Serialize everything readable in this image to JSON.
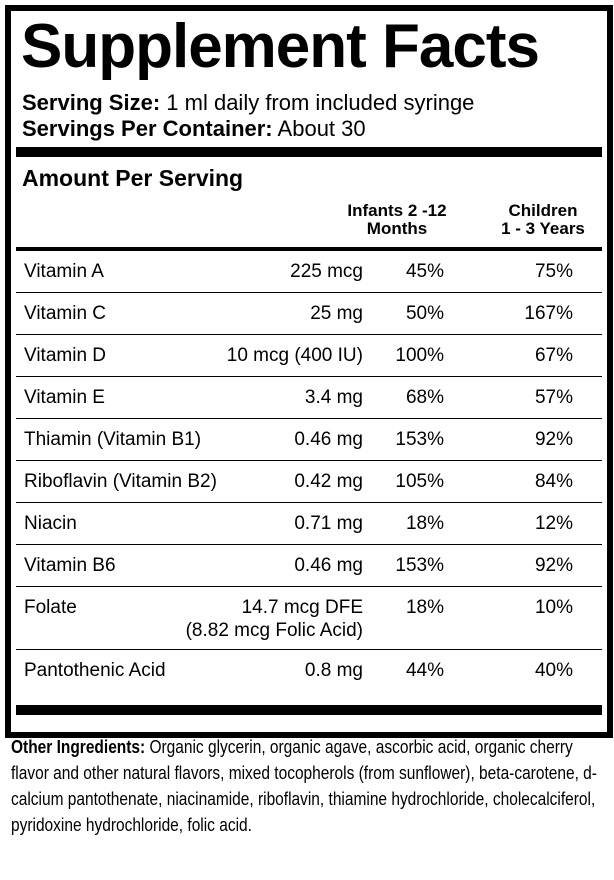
{
  "title": "Supplement Facts",
  "serving": {
    "size_label": "Serving Size:",
    "size_value": "1 ml daily from included syringe",
    "per_container_label": "Servings Per Container:",
    "per_container_value": "About 30"
  },
  "table": {
    "amount_per_serving": "Amount Per Serving",
    "col_infants_line1": "Infants 2 -12",
    "col_infants_line2": "Months",
    "col_children_line1": "Children",
    "col_children_line2": "1 - 3 Years",
    "rows": [
      {
        "nutrient": "Vitamin A",
        "amount": "225 mcg",
        "amount2": "",
        "infants": "45%",
        "children": "75%"
      },
      {
        "nutrient": "Vitamin C",
        "amount": "25 mg",
        "amount2": "",
        "infants": "50%",
        "children": "167%"
      },
      {
        "nutrient": "Vitamin D",
        "amount": "10 mcg (400 IU)",
        "amount2": "",
        "infants": "100%",
        "children": "67%"
      },
      {
        "nutrient": "Vitamin E",
        "amount": "3.4 mg",
        "amount2": "",
        "infants": "68%",
        "children": "57%"
      },
      {
        "nutrient": "Thiamin (Vitamin B1)",
        "amount": "0.46 mg",
        "amount2": "",
        "infants": "153%",
        "children": "92%"
      },
      {
        "nutrient": "Riboflavin (Vitamin B2)",
        "amount": "0.42 mg",
        "amount2": "",
        "infants": "105%",
        "children": "84%"
      },
      {
        "nutrient": "Niacin",
        "amount": "0.71 mg",
        "amount2": "",
        "infants": "18%",
        "children": "12%"
      },
      {
        "nutrient": "Vitamin B6",
        "amount": "0.46 mg",
        "amount2": "",
        "infants": "153%",
        "children": "92%"
      },
      {
        "nutrient": "Folate",
        "amount": "14.7 mcg DFE",
        "amount2": "(8.82 mcg Folic Acid)",
        "infants": "18%",
        "children": "10%"
      },
      {
        "nutrient": "Pantothenic Acid",
        "amount": "0.8 mg",
        "amount2": "",
        "infants": "44%",
        "children": "40%"
      }
    ]
  },
  "other_ingredients": {
    "label": "Other Ingredients:",
    "text": " Organic glycerin, organic agave, ascorbic acid, organic cherry flavor and other natural flavors, mixed tocopherols (from sunflower), beta-carotene, d-calcium pantothenate, niacinamide, riboflavin, thiamine hydrochloride, cholecalciferol, pyridoxine hydrochloride, folic acid."
  }
}
